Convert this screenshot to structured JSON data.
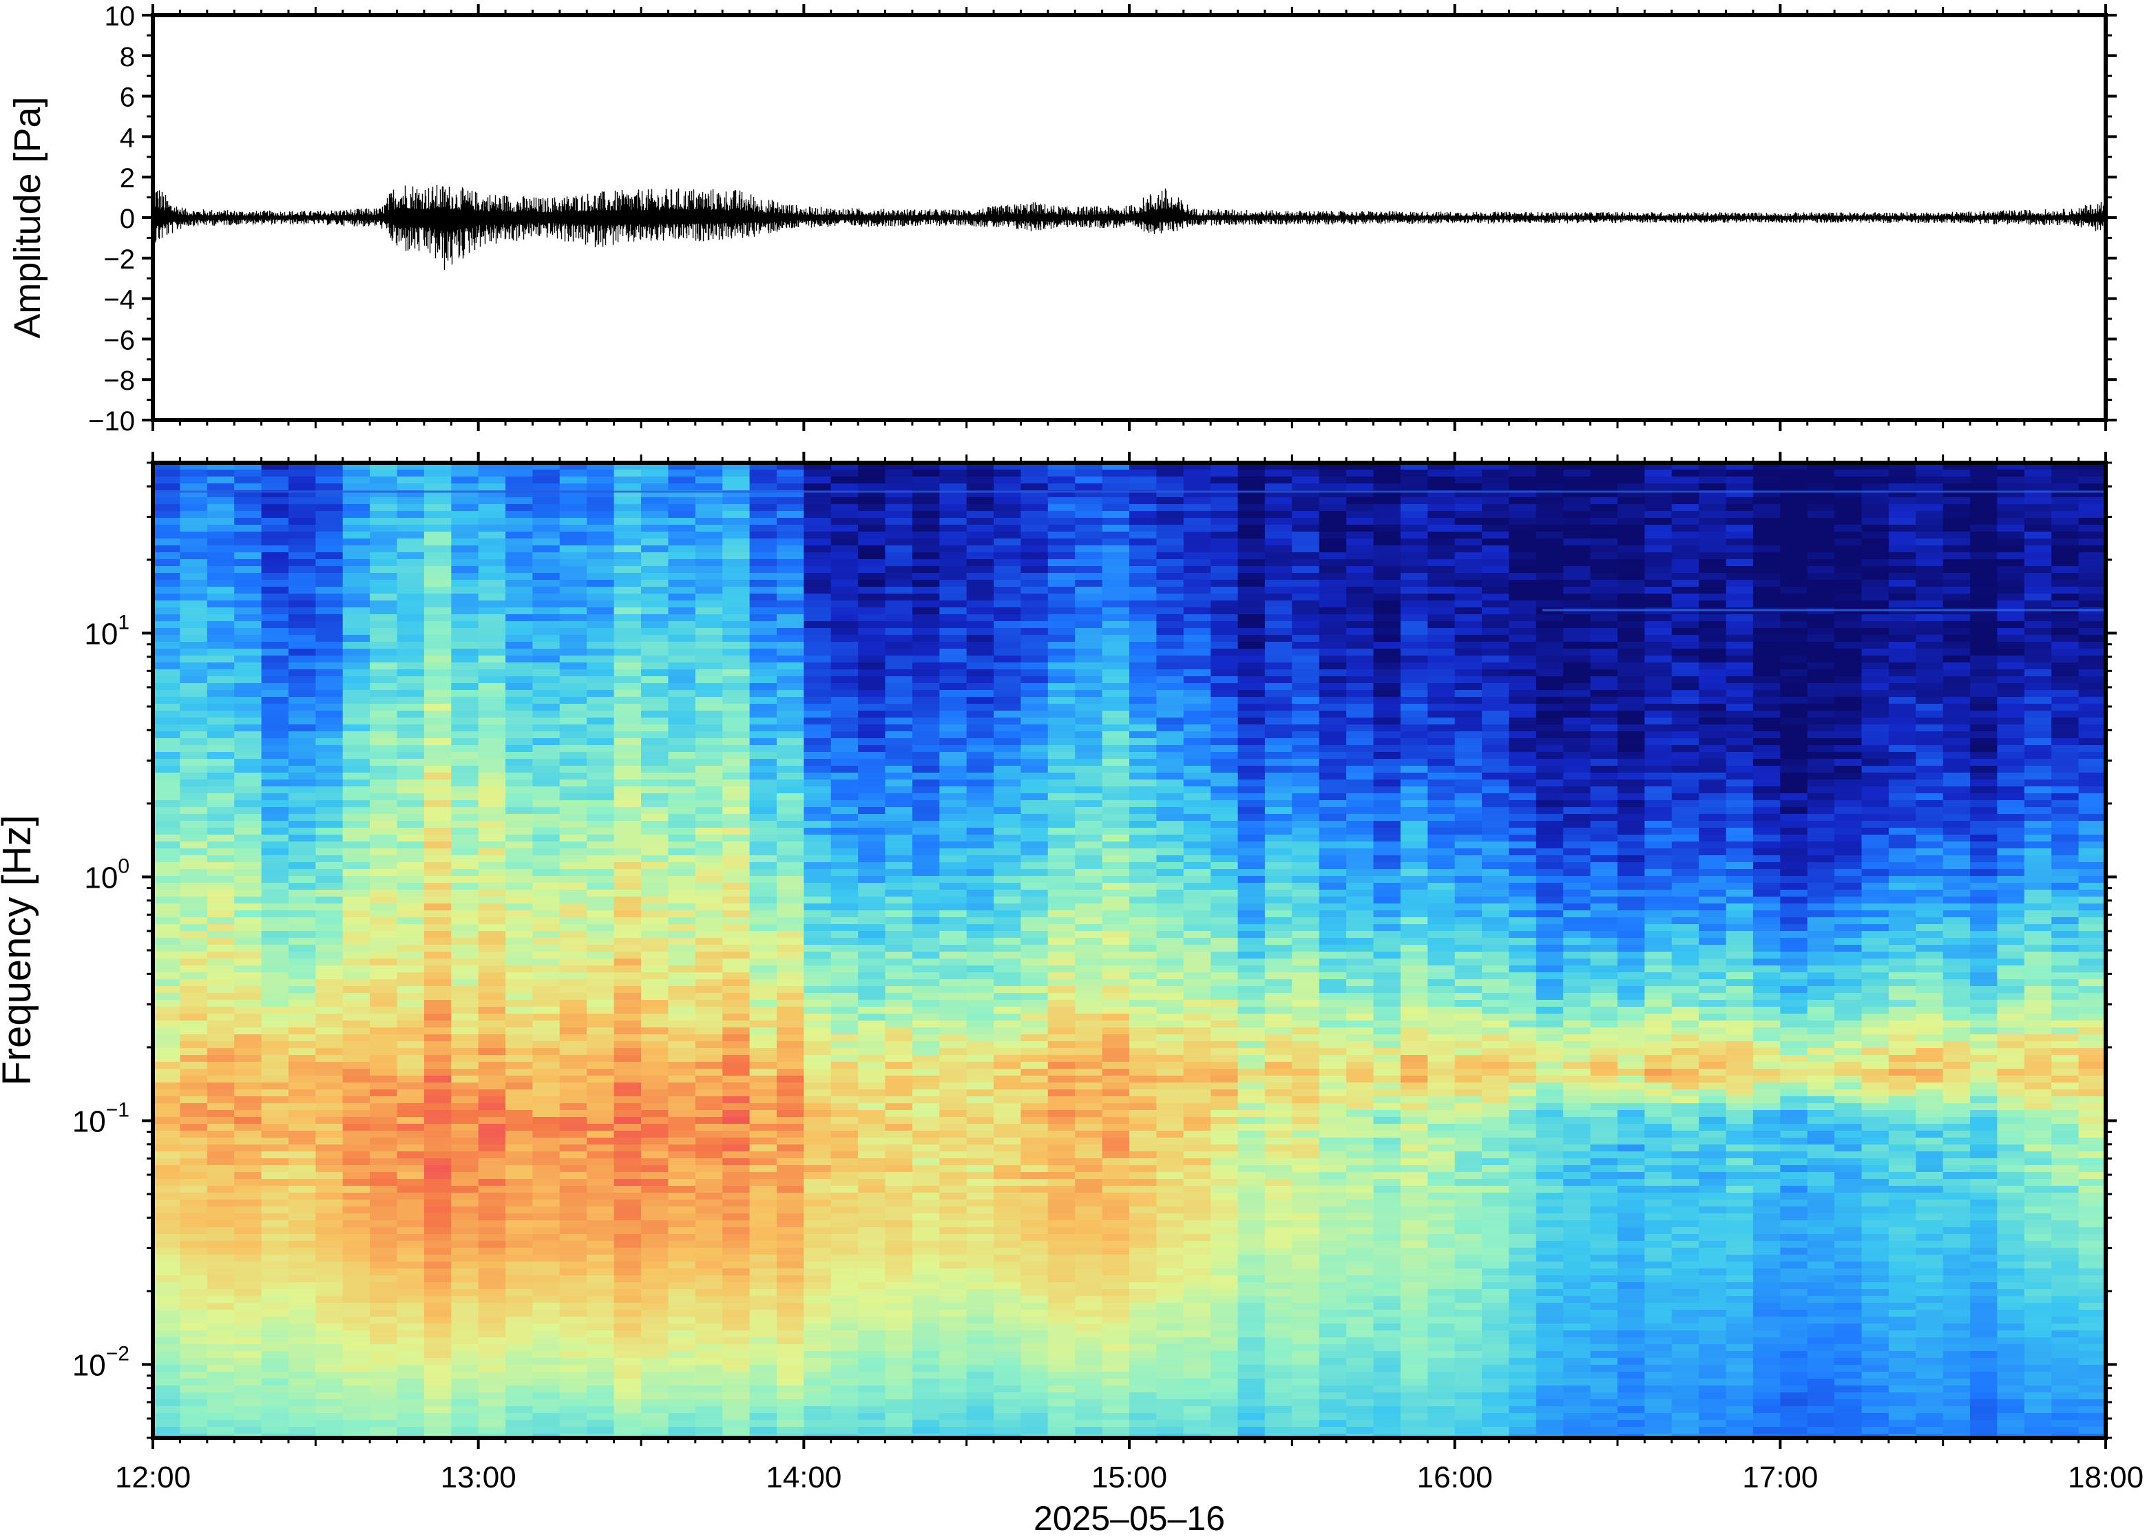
{
  "chart_data": [
    {
      "type": "line",
      "title": "",
      "ylabel": "Amplitude [Pa]",
      "ylim": [
        -10,
        10
      ],
      "yticks": [
        "10",
        "8",
        "6",
        "4",
        "2",
        "0",
        "−2",
        "−4",
        "−6",
        "−8",
        "−10"
      ],
      "ytick_values": [
        10,
        8,
        6,
        4,
        2,
        0,
        -2,
        -4,
        -6,
        -8,
        -10
      ],
      "xlim_hours": [
        12,
        18
      ],
      "series": [
        {
          "color": "#000000",
          "envelope_times_hours": [
            12.0,
            12.05,
            12.1,
            12.3,
            12.5,
            12.7,
            12.75,
            12.85,
            12.9,
            13.0,
            13.2,
            13.35,
            13.5,
            13.65,
            13.8,
            13.9,
            14.0,
            14.2,
            14.5,
            14.7,
            14.8,
            15.0,
            15.1,
            15.2,
            15.5,
            16.0,
            16.5,
            17.0,
            17.5,
            17.9,
            18.0
          ],
          "envelope_upper": [
            2.0,
            0.9,
            0.45,
            0.35,
            0.35,
            0.5,
            1.9,
            1.6,
            1.7,
            1.3,
            1.0,
            1.3,
            1.4,
            1.5,
            1.4,
            0.9,
            0.55,
            0.45,
            0.4,
            0.8,
            0.55,
            0.6,
            1.6,
            0.45,
            0.35,
            0.3,
            0.28,
            0.26,
            0.28,
            0.45,
            0.9
          ],
          "envelope_lower": [
            -1.5,
            -0.9,
            -0.45,
            -0.35,
            -0.35,
            -0.5,
            -1.7,
            -2.0,
            -2.8,
            -1.5,
            -1.0,
            -1.5,
            -1.3,
            -1.2,
            -1.1,
            -0.8,
            -0.5,
            -0.45,
            -0.4,
            -0.7,
            -0.5,
            -0.55,
            -0.9,
            -0.4,
            -0.35,
            -0.3,
            -0.28,
            -0.26,
            -0.28,
            -0.4,
            -0.8
          ]
        }
      ]
    },
    {
      "type": "heatmap",
      "title": "",
      "ylabel": "Frequency [Hz]",
      "xlabel": "2025–05–16",
      "xticks": [
        "12:00",
        "13:00",
        "14:00",
        "15:00",
        "16:00",
        "17:00",
        "18:00"
      ],
      "xtick_hours": [
        12,
        13,
        14,
        15,
        16,
        17,
        18
      ],
      "yscale": "log",
      "ylim": [
        0.005,
        50
      ],
      "yticks": [
        {
          "base": "10",
          "exp": "1",
          "value": 10
        },
        {
          "base": "10",
          "exp": "0",
          "value": 1
        },
        {
          "base": "10",
          "exp": "−1",
          "value": 0.1
        },
        {
          "base": "10",
          "exp": "−2",
          "value": 0.01
        }
      ],
      "colormap": "jet",
      "colormap_stops": [
        "#0b0a6e",
        "#1428c8",
        "#1e78ff",
        "#3cc8f0",
        "#8ef0c8",
        "#e0f590",
        "#f8c060",
        "#f57848",
        "#f04060"
      ],
      "intensity_normalized": {
        "note_scale": "0 = low (dark blue), 1 = high (red)",
        "times_hours": [
          12.0,
          12.5,
          12.75,
          13.0,
          13.25,
          13.5,
          13.75,
          14.0,
          14.25,
          14.5,
          14.75,
          15.0,
          15.25,
          15.5,
          16.0,
          16.5,
          17.0,
          17.5,
          18.0
        ],
        "log10_freq": [
          -2.3,
          -2.0,
          -1.5,
          -1.0,
          -0.8,
          -0.5,
          0.0,
          0.5,
          1.0,
          1.7
        ],
        "values": [
          [
            0.45,
            0.55,
            0.72,
            0.8,
            0.75,
            0.66,
            0.6,
            0.5,
            0.4,
            0.28
          ],
          [
            0.45,
            0.55,
            0.68,
            0.72,
            0.72,
            0.55,
            0.4,
            0.25,
            0.15,
            0.1
          ],
          [
            0.5,
            0.62,
            0.8,
            0.86,
            0.8,
            0.7,
            0.62,
            0.55,
            0.45,
            0.38
          ],
          [
            0.5,
            0.62,
            0.82,
            0.88,
            0.8,
            0.7,
            0.62,
            0.55,
            0.42,
            0.32
          ],
          [
            0.45,
            0.6,
            0.78,
            0.84,
            0.78,
            0.68,
            0.58,
            0.45,
            0.35,
            0.25
          ],
          [
            0.48,
            0.62,
            0.8,
            0.86,
            0.8,
            0.7,
            0.6,
            0.5,
            0.4,
            0.3
          ],
          [
            0.45,
            0.6,
            0.78,
            0.84,
            0.78,
            0.68,
            0.6,
            0.5,
            0.4,
            0.3
          ],
          [
            0.45,
            0.6,
            0.74,
            0.78,
            0.75,
            0.6,
            0.45,
            0.32,
            0.2,
            0.12
          ],
          [
            0.45,
            0.55,
            0.7,
            0.72,
            0.72,
            0.55,
            0.4,
            0.25,
            0.14,
            0.08
          ],
          [
            0.42,
            0.52,
            0.68,
            0.7,
            0.72,
            0.55,
            0.4,
            0.28,
            0.16,
            0.1
          ],
          [
            0.42,
            0.55,
            0.72,
            0.76,
            0.74,
            0.58,
            0.45,
            0.32,
            0.2,
            0.12
          ],
          [
            0.42,
            0.55,
            0.72,
            0.74,
            0.74,
            0.6,
            0.48,
            0.4,
            0.25,
            0.15
          ],
          [
            0.4,
            0.5,
            0.62,
            0.65,
            0.72,
            0.55,
            0.38,
            0.22,
            0.12,
            0.06
          ],
          [
            0.4,
            0.48,
            0.58,
            0.6,
            0.7,
            0.52,
            0.36,
            0.2,
            0.1,
            0.05
          ],
          [
            0.38,
            0.45,
            0.52,
            0.52,
            0.7,
            0.48,
            0.3,
            0.15,
            0.06,
            0.03
          ],
          [
            0.28,
            0.3,
            0.36,
            0.38,
            0.7,
            0.45,
            0.2,
            0.06,
            0.02,
            0.02
          ],
          [
            0.24,
            0.28,
            0.35,
            0.38,
            0.7,
            0.45,
            0.2,
            0.06,
            0.02,
            0.02
          ],
          [
            0.25,
            0.3,
            0.36,
            0.4,
            0.72,
            0.46,
            0.25,
            0.1,
            0.04,
            0.03
          ],
          [
            0.28,
            0.35,
            0.5,
            0.62,
            0.74,
            0.55,
            0.35,
            0.15,
            0.08,
            0.06
          ]
        ]
      }
    }
  ]
}
